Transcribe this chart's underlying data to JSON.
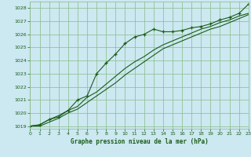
{
  "title": "Graphe pression niveau de la mer (hPa)",
  "bg_color": "#cce8f0",
  "grid_color": "#88bb88",
  "line_color": "#1a5c1a",
  "marker_color": "#1a5c1a",
  "xlim": [
    0,
    23
  ],
  "ylim": [
    1018.8,
    1028.5
  ],
  "yticks": [
    1019,
    1020,
    1021,
    1022,
    1023,
    1024,
    1025,
    1026,
    1027,
    1028
  ],
  "xticks": [
    0,
    1,
    2,
    3,
    4,
    5,
    6,
    7,
    8,
    9,
    10,
    11,
    12,
    13,
    14,
    15,
    16,
    17,
    18,
    19,
    20,
    21,
    22,
    23
  ],
  "series1_x": [
    0,
    1,
    2,
    3,
    4,
    5,
    6,
    7,
    8,
    9,
    10,
    11,
    12,
    13,
    14,
    15,
    16,
    17,
    18,
    19,
    20,
    21,
    22,
    23
  ],
  "series1_y": [
    1019.0,
    1019.1,
    1019.5,
    1019.8,
    1020.2,
    1020.5,
    1021.2,
    1021.6,
    1022.2,
    1022.8,
    1023.4,
    1023.9,
    1024.3,
    1024.8,
    1025.2,
    1025.5,
    1025.8,
    1026.1,
    1026.4,
    1026.6,
    1026.9,
    1027.1,
    1027.4,
    1027.6
  ],
  "series2_x": [
    0,
    1,
    2,
    3,
    4,
    5,
    6,
    7,
    8,
    9,
    10,
    11,
    12,
    13,
    14,
    15,
    16,
    17,
    18,
    19,
    20,
    21,
    22,
    23
  ],
  "series2_y": [
    1019.0,
    1019.0,
    1019.3,
    1019.6,
    1020.0,
    1020.3,
    1020.8,
    1021.3,
    1021.8,
    1022.3,
    1022.9,
    1023.4,
    1023.9,
    1024.4,
    1024.9,
    1025.2,
    1025.5,
    1025.8,
    1026.1,
    1026.4,
    1026.6,
    1026.9,
    1027.2,
    1027.5
  ],
  "series3_x": [
    0,
    1,
    2,
    3,
    4,
    5,
    6,
    7,
    8,
    9,
    10,
    11,
    12,
    13,
    14,
    15,
    16,
    17,
    18,
    19,
    20,
    21,
    22,
    23
  ],
  "series3_y": [
    1019.0,
    1019.1,
    1019.5,
    1019.7,
    1020.2,
    1021.0,
    1021.3,
    1023.0,
    1023.8,
    1024.5,
    1025.3,
    1025.8,
    1026.0,
    1026.4,
    1026.2,
    1026.2,
    1026.3,
    1026.5,
    1026.6,
    1026.8,
    1027.1,
    1027.3,
    1027.6,
    1028.3
  ]
}
